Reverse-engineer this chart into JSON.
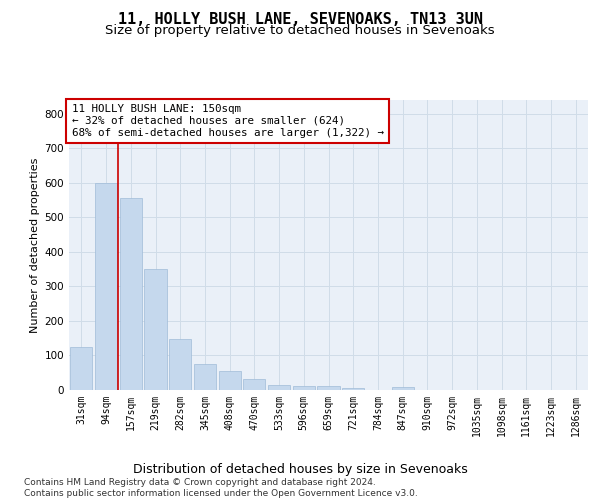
{
  "title": "11, HOLLY BUSH LANE, SEVENOAKS, TN13 3UN",
  "subtitle": "Size of property relative to detached houses in Sevenoaks",
  "xlabel": "Distribution of detached houses by size in Sevenoaks",
  "ylabel": "Number of detached properties",
  "bar_labels": [
    "31sqm",
    "94sqm",
    "157sqm",
    "219sqm",
    "282sqm",
    "345sqm",
    "408sqm",
    "470sqm",
    "533sqm",
    "596sqm",
    "659sqm",
    "721sqm",
    "784sqm",
    "847sqm",
    "910sqm",
    "972sqm",
    "1035sqm",
    "1098sqm",
    "1161sqm",
    "1223sqm",
    "1286sqm"
  ],
  "bar_values": [
    125,
    600,
    555,
    350,
    148,
    75,
    55,
    32,
    15,
    13,
    12,
    6,
    0,
    8,
    0,
    0,
    0,
    0,
    0,
    0,
    0
  ],
  "bar_color": "#c5d8ed",
  "bar_edge_color": "#a0bcd8",
  "red_line_x": 2,
  "red_line_color": "#cc0000",
  "annotation_text": "11 HOLLY BUSH LANE: 150sqm\n← 32% of detached houses are smaller (624)\n68% of semi-detached houses are larger (1,322) →",
  "annotation_box_color": "#ffffff",
  "annotation_box_edge": "#cc0000",
  "ylim": [
    0,
    840
  ],
  "yticks": [
    0,
    100,
    200,
    300,
    400,
    500,
    600,
    700,
    800
  ],
  "grid_color": "#d0dce8",
  "bg_color": "#eaf0f8",
  "footer": "Contains HM Land Registry data © Crown copyright and database right 2024.\nContains public sector information licensed under the Open Government Licence v3.0.",
  "title_fontsize": 11,
  "subtitle_fontsize": 9.5,
  "xlabel_fontsize": 9,
  "ylabel_fontsize": 8,
  "tick_fontsize": 7,
  "footer_fontsize": 6.5,
  "annot_fontsize": 7.8
}
